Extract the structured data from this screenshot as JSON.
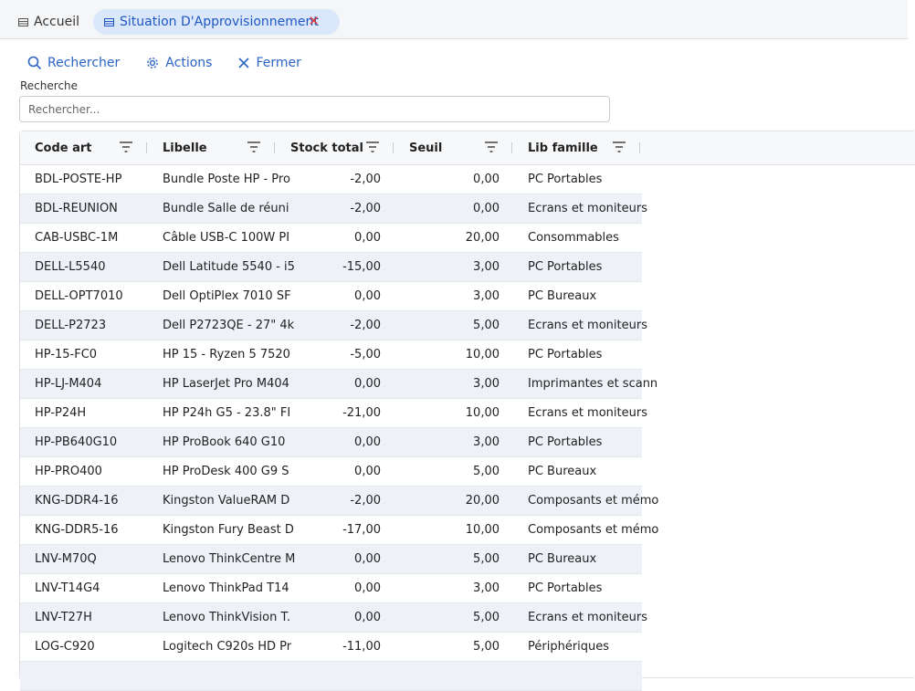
{
  "tabs": [
    {
      "label": "Accueil"
    },
    {
      "label": "Situation D'Approvisionnement"
    }
  ],
  "toolbar": {
    "search_label": "Rechercher",
    "actions_label": "Actions",
    "close_label": "Fermer"
  },
  "search": {
    "label": "Recherche",
    "placeholder": "Rechercher..."
  },
  "grid": {
    "columns": [
      "Code art",
      "Libelle",
      "Stock total",
      "Seuil",
      "Lib famille"
    ],
    "rows": [
      {
        "code": "BDL-POSTE-HP",
        "libelle": "Bundle Poste HP - Pro",
        "stock": "-2,00",
        "seuil": "0,00",
        "famille": "PC Portables"
      },
      {
        "code": "BDL-REUNION",
        "libelle": "Bundle Salle de réuni",
        "stock": "-2,00",
        "seuil": "0,00",
        "famille": "Ecrans et moniteurs"
      },
      {
        "code": "CAB-USBC-1M",
        "libelle": "Câble USB-C 100W PI",
        "stock": "0,00",
        "seuil": "20,00",
        "famille": "Consommables"
      },
      {
        "code": "DELL-L5540",
        "libelle": "Dell Latitude 5540 - i5",
        "stock": "-15,00",
        "seuil": "3,00",
        "famille": "PC Portables"
      },
      {
        "code": "DELL-OPT7010",
        "libelle": "Dell OptiPlex 7010 SF",
        "stock": "0,00",
        "seuil": "3,00",
        "famille": "PC Bureaux"
      },
      {
        "code": "DELL-P2723",
        "libelle": "Dell P2723QE - 27\" 4k",
        "stock": "-2,00",
        "seuil": "5,00",
        "famille": "Ecrans et moniteurs"
      },
      {
        "code": "HP-15-FC0",
        "libelle": "HP 15 - Ryzen 5 7520",
        "stock": "-5,00",
        "seuil": "10,00",
        "famille": "PC Portables"
      },
      {
        "code": "HP-LJ-M404",
        "libelle": "HP LaserJet Pro M404",
        "stock": "0,00",
        "seuil": "3,00",
        "famille": "Imprimantes et scann"
      },
      {
        "code": "HP-P24H",
        "libelle": "HP P24h G5 - 23.8\" FI",
        "stock": "-21,00",
        "seuil": "10,00",
        "famille": "Ecrans et moniteurs"
      },
      {
        "code": "HP-PB640G10",
        "libelle": "HP ProBook 640 G10",
        "stock": "0,00",
        "seuil": "3,00",
        "famille": "PC Portables"
      },
      {
        "code": "HP-PRO400",
        "libelle": "HP ProDesk 400 G9 S",
        "stock": "0,00",
        "seuil": "5,00",
        "famille": "PC Bureaux"
      },
      {
        "code": "KNG-DDR4-16",
        "libelle": "Kingston ValueRAM D",
        "stock": "-2,00",
        "seuil": "20,00",
        "famille": "Composants et mémo"
      },
      {
        "code": "KNG-DDR5-16",
        "libelle": "Kingston Fury Beast D",
        "stock": "-17,00",
        "seuil": "10,00",
        "famille": "Composants et mémo"
      },
      {
        "code": "LNV-M70Q",
        "libelle": "Lenovo ThinkCentre M",
        "stock": "0,00",
        "seuil": "5,00",
        "famille": "PC Bureaux"
      },
      {
        "code": "LNV-T14G4",
        "libelle": "Lenovo ThinkPad T14",
        "stock": "0,00",
        "seuil": "3,00",
        "famille": "PC Portables"
      },
      {
        "code": "LNV-T27H",
        "libelle": "Lenovo ThinkVision T.",
        "stock": "0,00",
        "seuil": "5,00",
        "famille": "Ecrans et moniteurs"
      },
      {
        "code": "LOG-C920",
        "libelle": "Logitech C920s HD Pr",
        "stock": "-11,00",
        "seuil": "5,00",
        "famille": "Périphériques"
      },
      {
        "code": "",
        "libelle": "",
        "stock": "",
        "seuil": "",
        "famille": ""
      }
    ]
  },
  "colors": {
    "accent": "#2a63c6",
    "active_tab_bg": "#dbe7fb",
    "close_red": "#e53935",
    "row_alt": "#eef2f8"
  },
  "icons": [
    "grid-icon",
    "close-icon",
    "search-icon",
    "gear-icon",
    "x-icon",
    "filter-icon"
  ]
}
